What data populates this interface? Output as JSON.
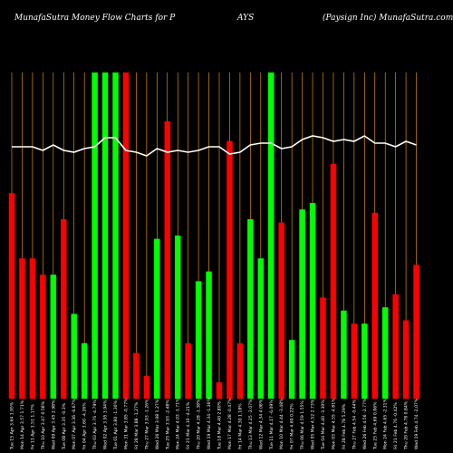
{
  "header": {
    "left": "MunafaSutra  Money Flow  Charts for P",
    "middle": "AYS",
    "right": "(Paysign  Inc) MunafaSutra.com"
  },
  "chart_data": {
    "type": "bar",
    "title": "MunafaSutra  Money Flow  Charts for PAYS",
    "grid": true,
    "ylim": [
      0,
      100
    ],
    "categories": [
      "Tue 15 Apr 3.64 1.95%",
      "Mon 14 Apr 3.57 1.71%",
      "Fri 11 Apr 3.51 1.17%",
      "Thu 10 Apr 3.47 0.58%",
      "Wed 09 Apr 3.45 2.98%",
      "Tue 08 Apr 3.35 -0.3%",
      "Mon 07 Apr 3.36 -6.67%",
      "Fri 04 Apr 3.60 -4.26%",
      "Thu 03 Apr 3.76 -4.79%",
      "Wed 02 Apr 3.95 3.94%",
      "Tue 01 Apr 3.80 -1.30%",
      "Mon 31 Mar 3.85 -0.77%",
      "Fri 28 Mar 3.88 -1.27%",
      "Thu 27 Mar 3.93 -1.26%",
      "Wed 26 Mar 3.98 1.27%",
      "Tue 25 Mar 3.93 -2.48%",
      "Mon 24 Mar 4.03 -1.71%",
      "Fri 21 Mar 4.10 -4.21%",
      "Thu 20 Mar 4.28 -1.38%",
      "Wed 19 Mar 4.34 -1.36%",
      "Tue 18 Mar 4.40 2.80%",
      "Mon 17 Mar 4.28 -0.47%",
      "Fri 14 Mar 4.30 1.18%",
      "Thu 13 Mar 4.25 -2.07%",
      "Wed 12 Mar 4.34 4.08%",
      "Tue 11 Mar 4.17 -6.09%",
      "Mon 10 Mar 4.44 -3.48%",
      "Fri 07 Mar 4.60 0.22%",
      "Thu 06 Mar 4.59 1.55%",
      "Wed 05 Mar 4.52 2.73%",
      "Tue 04 Mar 4.40 -3.30%",
      "Mon 03 Mar 4.55 -4.81%",
      "Fri 28 Feb 4.78 5.29%",
      "Thu 27 Feb 4.54 -0.44%",
      "Wed 26 Feb 4.56 -2.77%",
      "Tue 25 Feb 4.69 0.86%",
      "Mon 24 Feb 4.65 -2.31%",
      "Fri 21 Feb 4.76 -0.42%",
      "Thu 20 Feb 4.78 0.84%",
      "Wed 19 Feb 4.74 -2.07%"
    ],
    "bars": [
      {
        "value": 63,
        "color": "red"
      },
      {
        "value": 43,
        "color": "red"
      },
      {
        "value": 43,
        "color": "red"
      },
      {
        "value": 38,
        "color": "red"
      },
      {
        "value": 38,
        "color": "green"
      },
      {
        "value": 55,
        "color": "red"
      },
      {
        "value": 26,
        "color": "green"
      },
      {
        "value": 17,
        "color": "green"
      },
      {
        "value": 100,
        "color": "green"
      },
      {
        "value": 100,
        "color": "green"
      },
      {
        "value": 100,
        "color": "green"
      },
      {
        "value": 100,
        "color": "red"
      },
      {
        "value": 14,
        "color": "red"
      },
      {
        "value": 7,
        "color": "red"
      },
      {
        "value": 49,
        "color": "green"
      },
      {
        "value": 85,
        "color": "red"
      },
      {
        "value": 50,
        "color": "green"
      },
      {
        "value": 17,
        "color": "red"
      },
      {
        "value": 36,
        "color": "green"
      },
      {
        "value": 39,
        "color": "green"
      },
      {
        "value": 5,
        "color": "red"
      },
      {
        "value": 79,
        "color": "red"
      },
      {
        "value": 17,
        "color": "red"
      },
      {
        "value": 55,
        "color": "green"
      },
      {
        "value": 43,
        "color": "green"
      },
      {
        "value": 100,
        "color": "green"
      },
      {
        "value": 54,
        "color": "red"
      },
      {
        "value": 18,
        "color": "green"
      },
      {
        "value": 58,
        "color": "green"
      },
      {
        "value": 60,
        "color": "green"
      },
      {
        "value": 31,
        "color": "red"
      },
      {
        "value": 72,
        "color": "red"
      },
      {
        "value": 27,
        "color": "green"
      },
      {
        "value": 23,
        "color": "red"
      },
      {
        "value": 23,
        "color": "green"
      },
      {
        "value": 57,
        "color": "red"
      },
      {
        "value": 28,
        "color": "green"
      },
      {
        "value": 32,
        "color": "red"
      },
      {
        "value": 24,
        "color": "red"
      },
      {
        "value": 41,
        "color": "red"
      }
    ],
    "price_line": [
      69,
      69,
      69,
      67,
      70,
      67,
      66,
      68,
      69,
      74,
      74,
      67,
      66,
      64,
      68,
      66,
      67,
      66,
      67,
      69,
      69,
      65,
      66,
      70,
      71,
      71,
      68,
      69,
      73,
      75,
      74,
      72,
      73,
      72,
      75,
      71,
      71,
      69,
      72,
      70
    ],
    "colors": {
      "up": "#00ff00",
      "down": "#ff0000",
      "grid": "#ffa500",
      "line": "#ffffff",
      "background": "#000000"
    }
  }
}
